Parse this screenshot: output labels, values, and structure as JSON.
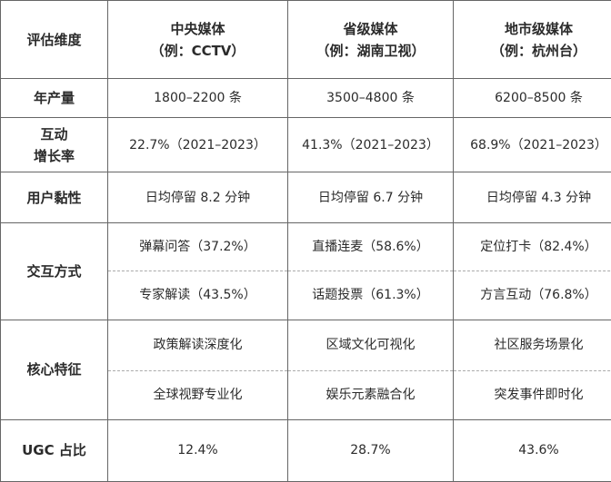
{
  "headers": {
    "dimension": "评估维度",
    "central": {
      "line1": "中央媒体",
      "line2": "（例：CCTV）"
    },
    "provincial": {
      "line1": "省级媒体",
      "line2": "（例：湖南卫视）"
    },
    "municipal": {
      "line1": "地市级媒体",
      "line2": "（例：杭州台）"
    }
  },
  "rows": {
    "annual_output": {
      "label": "年产量",
      "central": "1800–2200 条",
      "provincial": "3500–4800 条",
      "municipal": "6200–8500 条"
    },
    "interaction_growth": {
      "label_line1": "互动",
      "label_line2": "增长率",
      "central": "22.7%（2021–2023）",
      "provincial": "41.3%（2021–2023）",
      "municipal": "68.9%（2021–2023）"
    },
    "stickiness": {
      "label": "用户黏性",
      "central": "日均停留 8.2 分钟",
      "provincial": "日均停留 6.7 分钟",
      "municipal": "日均停留 4.3 分钟"
    },
    "interaction_mode": {
      "label": "交互方式",
      "central": [
        "弹幕问答（37.2%）",
        "专家解读（43.5%）"
      ],
      "provincial": [
        "直播连麦（58.6%）",
        "话题投票（61.3%）"
      ],
      "municipal": [
        "定位打卡（82.4%）",
        "方言互动（76.8%）"
      ]
    },
    "core_features": {
      "label": "核心特征",
      "central": [
        "政策解读深度化",
        "全球视野专业化"
      ],
      "provincial": [
        "区域文化可视化",
        "娱乐元素融合化"
      ],
      "municipal": [
        "社区服务场景化",
        "突发事件即时化"
      ]
    },
    "ugc_ratio": {
      "label": "UGC 占比",
      "central": "12.4%",
      "provincial": "28.7%",
      "municipal": "43.6%"
    }
  }
}
